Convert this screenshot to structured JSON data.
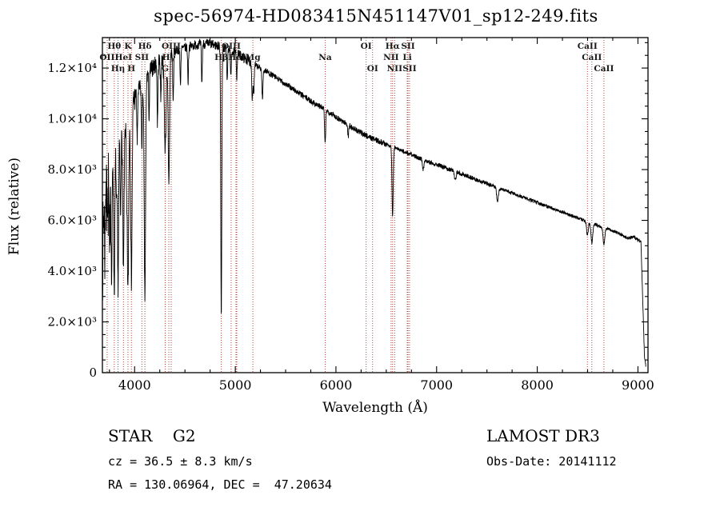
{
  "title": "spec-56974-HD083415N451147V01_sp12-249.fits",
  "footer": {
    "class_label": "STAR    G2",
    "survey": "LAMOST DR3",
    "cz": "cz = 36.5 ± 8.3 km/s",
    "obs_date": "Obs-Date: 20141112",
    "radec": "RA = 130.06964, DEC =  47.20634"
  },
  "chart_data": {
    "type": "line",
    "title": "spec-56974-HD083415N451147V01_sp12-249.fits",
    "xlabel": "Wavelength (Å)",
    "ylabel": "Flux (relative)",
    "xlim": [
      3680,
      9100
    ],
    "ylim": [
      0,
      13200
    ],
    "grid": false,
    "series_color": "#000000",
    "marker_color": "#b24a3c",
    "marker_label_color": "#1a1a1a",
    "x_ticks": [
      {
        "value": 4000,
        "label": "4000"
      },
      {
        "value": 5000,
        "label": "5000"
      },
      {
        "value": 6000,
        "label": "6000"
      },
      {
        "value": 7000,
        "label": "7000"
      },
      {
        "value": 8000,
        "label": "8000"
      },
      {
        "value": 9000,
        "label": "9000"
      }
    ],
    "x_minor_step": 250,
    "y_ticks": [
      {
        "value": 0,
        "label": "0"
      },
      {
        "value": 2000,
        "label": "2.0×10³"
      },
      {
        "value": 4000,
        "label": "4.0×10³"
      },
      {
        "value": 6000,
        "label": "6.0×10³"
      },
      {
        "value": 8000,
        "label": "8.0×10³"
      },
      {
        "value": 10000,
        "label": "1.0×10⁴"
      },
      {
        "value": 12000,
        "label": "1.2×10⁴"
      }
    ],
    "y_minor_step": 500,
    "line_markers": [
      {
        "label": "OII",
        "wl": 3727,
        "row": 2
      },
      {
        "label": "Hθ",
        "wl": 3798,
        "row": 1
      },
      {
        "label": "Hη",
        "wl": 3835,
        "row": 3
      },
      {
        "label": "HeI",
        "wl": 3889,
        "row": 2
      },
      {
        "label": "K",
        "wl": 3934,
        "row": 1
      },
      {
        "label": "H",
        "wl": 3968,
        "row": 3
      },
      {
        "label": "SII",
        "wl": 4072,
        "row": 2
      },
      {
        "label": "Hδ",
        "wl": 4102,
        "row": 1
      },
      {
        "label": "G",
        "wl": 4304,
        "row": 3
      },
      {
        "label": "Hγ",
        "wl": 4340,
        "row": 2
      },
      {
        "label": "OIII",
        "wl": 4363,
        "row": 1
      },
      {
        "label": "Hβ",
        "wl": 4861,
        "row": 2
      },
      {
        "label": "OIII",
        "wl": 4959,
        "row": 1
      },
      {
        "label": "",
        "wl": 5007,
        "row": 1
      },
      {
        "label": "HeI",
        "wl": 5015,
        "row": 2
      },
      {
        "label": "Mg",
        "wl": 5175,
        "row": 2
      },
      {
        "label": "Na",
        "wl": 5893,
        "row": 2
      },
      {
        "label": "OI",
        "wl": 6300,
        "row": 1
      },
      {
        "label": "OI",
        "wl": 6364,
        "row": 3
      },
      {
        "label": "NII",
        "wl": 6548,
        "row": 2
      },
      {
        "label": "Hα",
        "wl": 6563,
        "row": 1
      },
      {
        "label": "NII",
        "wl": 6583,
        "row": 3
      },
      {
        "label": "Li",
        "wl": 6708,
        "row": 2
      },
      {
        "label": "SII",
        "wl": 6716,
        "row": 1
      },
      {
        "label": "SII",
        "wl": 6731,
        "row": 3
      },
      {
        "label": "CaII",
        "wl": 8498,
        "row": 1
      },
      {
        "label": "CaII",
        "wl": 8542,
        "row": 2
      },
      {
        "label": "CaII",
        "wl": 8662,
        "row": 3
      }
    ],
    "spectrum": {
      "range": [
        3682,
        9080
      ],
      "sample_step": 2,
      "continuum": [
        [
          3682,
          4500
        ],
        [
          3695,
          6500
        ],
        [
          3710,
          7800
        ],
        [
          3725,
          8600
        ],
        [
          3745,
          9200
        ],
        [
          3770,
          8700
        ],
        [
          3800,
          8900
        ],
        [
          3830,
          9300
        ],
        [
          3865,
          9100
        ],
        [
          3900,
          9700
        ],
        [
          3940,
          10200
        ],
        [
          3980,
          10700
        ],
        [
          4050,
          11200
        ],
        [
          4150,
          11900
        ],
        [
          4250,
          12300
        ],
        [
          4350,
          12550
        ],
        [
          4450,
          12750
        ],
        [
          4550,
          12850
        ],
        [
          4650,
          12950
        ],
        [
          4750,
          12950
        ],
        [
          4850,
          12850
        ],
        [
          4950,
          12700
        ],
        [
          5050,
          12500
        ],
        [
          5175,
          12150
        ],
        [
          5300,
          11900
        ],
        [
          5450,
          11500
        ],
        [
          5600,
          11100
        ],
        [
          5750,
          10700
        ],
        [
          5900,
          10350
        ],
        [
          6050,
          9950
        ],
        [
          6200,
          9550
        ],
        [
          6350,
          9250
        ],
        [
          6500,
          9000
        ],
        [
          6650,
          8750
        ],
        [
          6800,
          8500
        ],
        [
          7000,
          8200
        ],
        [
          7200,
          7900
        ],
        [
          7400,
          7600
        ],
        [
          7600,
          7300
        ],
        [
          7800,
          7000
        ],
        [
          8000,
          6700
        ],
        [
          8200,
          6400
        ],
        [
          8400,
          6100
        ],
        [
          8600,
          5800
        ],
        [
          8750,
          5600
        ],
        [
          8900,
          5300
        ],
        [
          8960,
          5350
        ],
        [
          9010,
          5200
        ],
        [
          9030,
          5150
        ],
        [
          9048,
          2800
        ],
        [
          9065,
          600
        ],
        [
          9080,
          250
        ]
      ],
      "absorption_lines": [
        {
          "wl": 3705,
          "depth": 2500,
          "width": 4
        },
        {
          "wl": 3722,
          "depth": 2000,
          "width": 4
        },
        {
          "wl": 3735,
          "depth": 2500,
          "width": 4
        },
        {
          "wl": 3750,
          "depth": 4800,
          "width": 5
        },
        {
          "wl": 3771,
          "depth": 5200,
          "width": 5
        },
        {
          "wl": 3798,
          "depth": 5600,
          "width": 6
        },
        {
          "wl": 3820,
          "depth": 2500,
          "width": 4
        },
        {
          "wl": 3835,
          "depth": 5800,
          "width": 6
        },
        {
          "wl": 3860,
          "depth": 3000,
          "width": 4
        },
        {
          "wl": 3889,
          "depth": 5600,
          "width": 6
        },
        {
          "wl": 3920,
          "depth": 2500,
          "width": 4
        },
        {
          "wl": 3934,
          "depth": 7000,
          "width": 7
        },
        {
          "wl": 3968,
          "depth": 6800,
          "width": 7
        },
        {
          "wl": 4026,
          "depth": 2000,
          "width": 4
        },
        {
          "wl": 4072,
          "depth": 2400,
          "width": 5
        },
        {
          "wl": 4102,
          "depth": 8600,
          "width": 7
        },
        {
          "wl": 4144,
          "depth": 1800,
          "width": 4
        },
        {
          "wl": 4227,
          "depth": 2400,
          "width": 4
        },
        {
          "wl": 4260,
          "depth": 1500,
          "width": 4
        },
        {
          "wl": 4304,
          "depth": 3600,
          "width": 9
        },
        {
          "wl": 4340,
          "depth": 5200,
          "width": 7
        },
        {
          "wl": 4383,
          "depth": 2000,
          "width": 4
        },
        {
          "wl": 4455,
          "depth": 1400,
          "width": 4
        },
        {
          "wl": 4531,
          "depth": 1400,
          "width": 4
        },
        {
          "wl": 4668,
          "depth": 1600,
          "width": 4
        },
        {
          "wl": 4861,
          "depth": 10700,
          "width": 5
        },
        {
          "wl": 4920,
          "depth": 1300,
          "width": 4
        },
        {
          "wl": 4957,
          "depth": 1100,
          "width": 4
        },
        {
          "wl": 5015,
          "depth": 900,
          "width": 4
        },
        {
          "wl": 5169,
          "depth": 1300,
          "width": 5
        },
        {
          "wl": 5183,
          "depth": 1100,
          "width": 5
        },
        {
          "wl": 5270,
          "depth": 1200,
          "width": 5
        },
        {
          "wl": 5890,
          "depth": 1000,
          "width": 4
        },
        {
          "wl": 5896,
          "depth": 800,
          "width": 4
        },
        {
          "wl": 6122,
          "depth": 500,
          "width": 4
        },
        {
          "wl": 6563,
          "depth": 2700,
          "width": 6
        },
        {
          "wl": 6867,
          "depth": 400,
          "width": 7
        },
        {
          "wl": 7185,
          "depth": 300,
          "width": 8
        },
        {
          "wl": 7605,
          "depth": 550,
          "width": 9
        },
        {
          "wl": 8498,
          "depth": 550,
          "width": 8
        },
        {
          "wl": 8542,
          "depth": 750,
          "width": 9
        },
        {
          "wl": 8662,
          "depth": 650,
          "width": 9
        }
      ],
      "noise": {
        "seed": 7,
        "amplitudes": [
          [
            3765,
            1700
          ],
          [
            4005,
            600
          ],
          [
            4400,
            350
          ],
          [
            5200,
            190
          ],
          [
            6500,
            115
          ],
          [
            7600,
            85
          ],
          [
            9100,
            65
          ]
        ]
      }
    }
  }
}
